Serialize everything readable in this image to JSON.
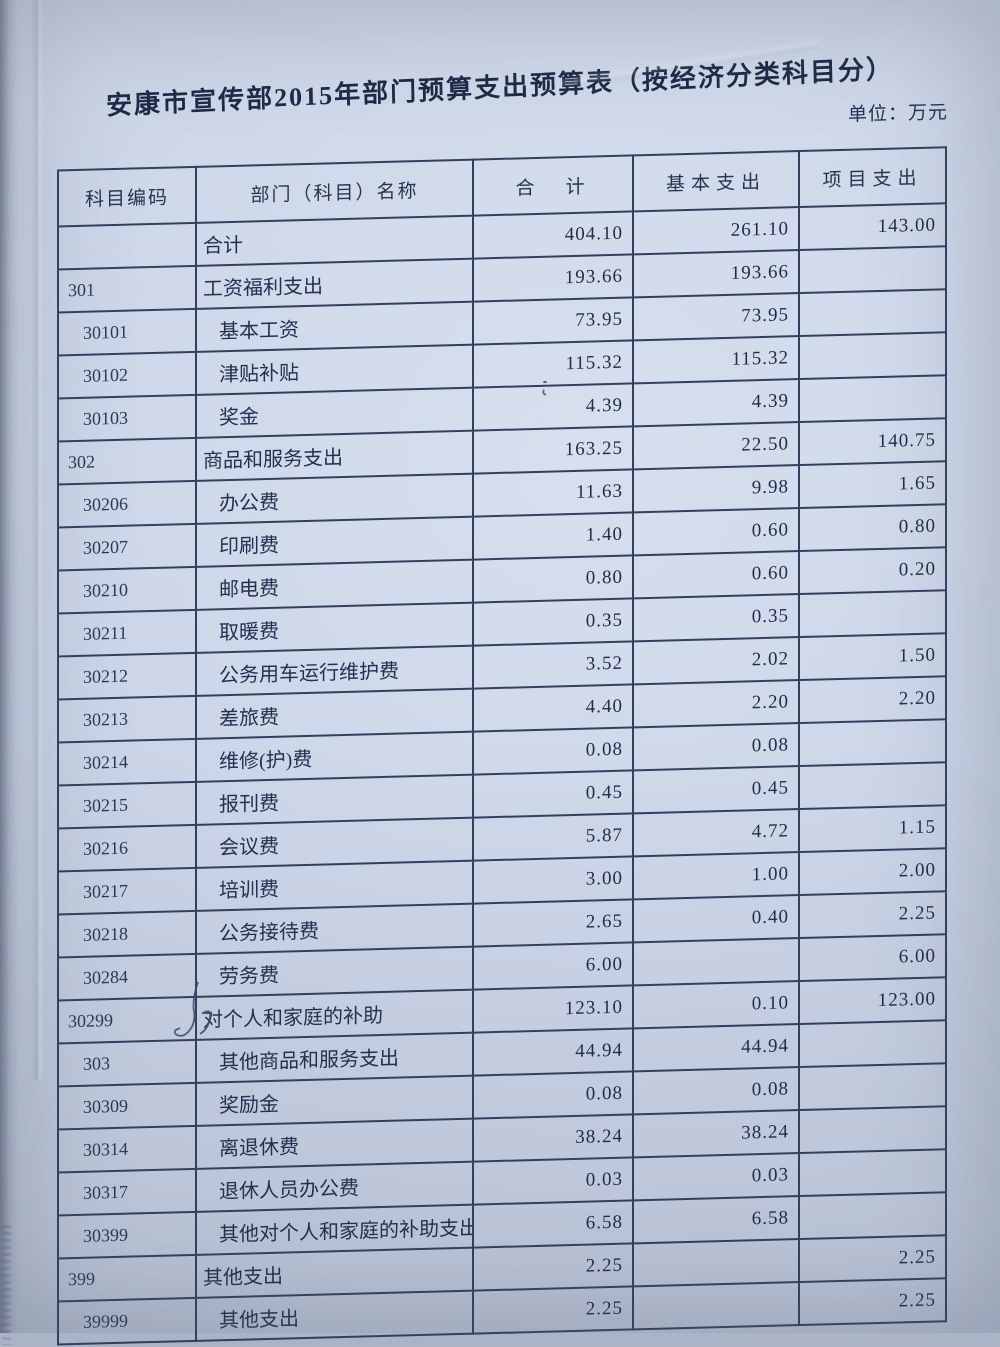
{
  "title": "安康市宣传部2015年部门预算支出预算表（按经济分类科目分）",
  "unit_label": "单位：万元",
  "colors": {
    "paper": "#ccd6e8",
    "table_line": "#30405f",
    "ink_text": "#223150"
  },
  "table": {
    "headers": [
      "科目编码",
      "部门（科目）名称",
      "合　计",
      "基本支出",
      "项目支出"
    ],
    "rows": [
      {
        "code": "",
        "name": "合计",
        "total": "404.10",
        "basic": "261.10",
        "project": "143.00",
        "indent": false
      },
      {
        "code": "301",
        "name": "工资福利支出",
        "total": "193.66",
        "basic": "193.66",
        "project": "",
        "indent": false
      },
      {
        "code": "30101",
        "name": "基本工资",
        "total": "73.95",
        "basic": "73.95",
        "project": "",
        "indent": true
      },
      {
        "code": "30102",
        "name": "津贴补贴",
        "total": "115.32",
        "basic": "115.32",
        "project": "",
        "indent": true
      },
      {
        "code": "30103",
        "name": "奖金",
        "total": "4.39",
        "basic": "4.39",
        "project": "",
        "indent": true
      },
      {
        "code": "302",
        "name": "商品和服务支出",
        "total": "163.25",
        "basic": "22.50",
        "project": "140.75",
        "indent": false
      },
      {
        "code": "30206",
        "name": "办公费",
        "total": "11.63",
        "basic": "9.98",
        "project": "1.65",
        "indent": true
      },
      {
        "code": "30207",
        "name": "印刷费",
        "total": "1.40",
        "basic": "0.60",
        "project": "0.80",
        "indent": true
      },
      {
        "code": "30210",
        "name": "邮电费",
        "total": "0.80",
        "basic": "0.60",
        "project": "0.20",
        "indent": true
      },
      {
        "code": "30211",
        "name": "取暖费",
        "total": "0.35",
        "basic": "0.35",
        "project": "",
        "indent": true
      },
      {
        "code": "30212",
        "name": "公务用车运行维护费",
        "total": "3.52",
        "basic": "2.02",
        "project": "1.50",
        "indent": true
      },
      {
        "code": "30213",
        "name": "差旅费",
        "total": "4.40",
        "basic": "2.20",
        "project": "2.20",
        "indent": true
      },
      {
        "code": "30214",
        "name": "维修(护)费",
        "total": "0.08",
        "basic": "0.08",
        "project": "",
        "indent": true
      },
      {
        "code": "30215",
        "name": "报刊费",
        "total": "0.45",
        "basic": "0.45",
        "project": "",
        "indent": true
      },
      {
        "code": "30216",
        "name": "会议费",
        "total": "5.87",
        "basic": "4.72",
        "project": "1.15",
        "indent": true
      },
      {
        "code": "30217",
        "name": "培训费",
        "total": "3.00",
        "basic": "1.00",
        "project": "2.00",
        "indent": true
      },
      {
        "code": "30218",
        "name": "公务接待费",
        "total": "2.65",
        "basic": "0.40",
        "project": "2.25",
        "indent": true
      },
      {
        "code": "30284",
        "name": "劳务费",
        "total": "6.00",
        "basic": "",
        "project": "6.00",
        "indent": true
      },
      {
        "code": "30299",
        "name": "对个人和家庭的补助",
        "total": "123.10",
        "basic": "0.10",
        "project": "123.00",
        "indent": false
      },
      {
        "code": "303",
        "name": "其他商品和服务支出",
        "total": "44.94",
        "basic": "44.94",
        "project": "",
        "indent": true
      },
      {
        "code": "30309",
        "name": "奖励金",
        "total": "0.08",
        "basic": "0.08",
        "project": "",
        "indent": true
      },
      {
        "code": "30314",
        "name": "离退休费",
        "total": "38.24",
        "basic": "38.24",
        "project": "",
        "indent": true
      },
      {
        "code": "30317",
        "name": "退休人员办公费",
        "total": "0.03",
        "basic": "0.03",
        "project": "",
        "indent": true
      },
      {
        "code": "30399",
        "name": "其他对个人和家庭的补助支出",
        "total": "6.58",
        "basic": "6.58",
        "project": "",
        "indent": true
      },
      {
        "code": "399",
        "name": "其他支出",
        "total": "2.25",
        "basic": "",
        "project": "2.25",
        "indent": false
      },
      {
        "code": "39999",
        "name": "其他支出",
        "total": "2.25",
        "basic": "",
        "project": "2.25",
        "indent": true
      }
    ]
  }
}
